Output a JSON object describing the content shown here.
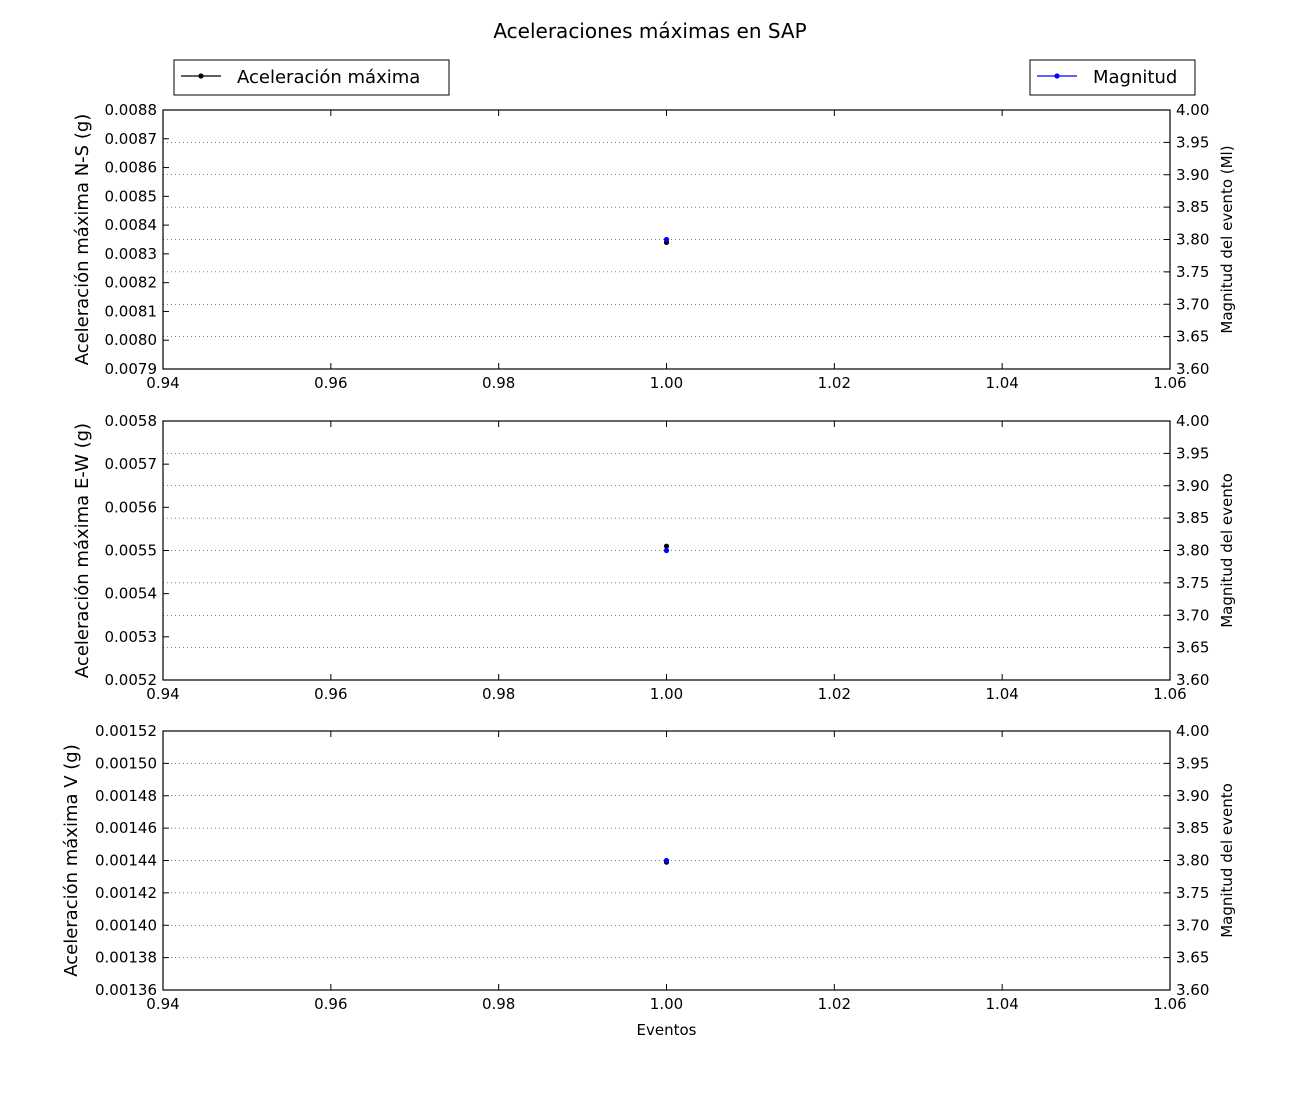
{
  "title": "Aceleraciones máximas en SAP",
  "legend": {
    "left": {
      "label": "Aceleración máxima",
      "color": "#000000",
      "placement": "upper-left"
    },
    "right": {
      "label": "Magnitud",
      "color": "#0000ff",
      "placement": "upper-right"
    }
  },
  "chart_data": [
    {
      "type": "scatter",
      "xlabel": "",
      "xlim": [
        0.94,
        1.06
      ],
      "xticks": [
        "0.94",
        "0.96",
        "0.98",
        "1.00",
        "1.02",
        "1.04",
        "1.06"
      ],
      "ylabel": "Aceleración máxima N-S (g)",
      "ylim": [
        0.0079,
        0.0088
      ],
      "yticks": [
        "0.0079",
        "0.0080",
        "0.0081",
        "0.0082",
        "0.0083",
        "0.0084",
        "0.0085",
        "0.0086",
        "0.0087",
        "0.0088"
      ],
      "y2label": "Magnitud del evento (Ml)",
      "y2lim": [
        3.6,
        4.0
      ],
      "y2ticks": [
        "3.60",
        "3.65",
        "3.70",
        "3.75",
        "3.80",
        "3.85",
        "3.90",
        "3.95",
        "4.00"
      ],
      "grid": "horizontal-dotted",
      "series": [
        {
          "name": "Aceleración máxima",
          "axis": "left",
          "color": "#000000",
          "x": [
            1.0
          ],
          "y": [
            0.00834
          ]
        },
        {
          "name": "Magnitud",
          "axis": "right",
          "color": "#0000ff",
          "x": [
            1.0
          ],
          "y": [
            3.8
          ]
        }
      ]
    },
    {
      "type": "scatter",
      "xlabel": "",
      "xlim": [
        0.94,
        1.06
      ],
      "xticks": [
        "0.94",
        "0.96",
        "0.98",
        "1.00",
        "1.02",
        "1.04",
        "1.06"
      ],
      "ylabel": "Aceleración máxima E-W (g)",
      "ylim": [
        0.0052,
        0.0058
      ],
      "yticks": [
        "0.0052",
        "0.0053",
        "0.0054",
        "0.0055",
        "0.0056",
        "0.0057",
        "0.0058"
      ],
      "y2label": "Magnitud del evento",
      "y2lim": [
        3.6,
        4.0
      ],
      "y2ticks": [
        "3.60",
        "3.65",
        "3.70",
        "3.75",
        "3.80",
        "3.85",
        "3.90",
        "3.95",
        "4.00"
      ],
      "grid": "horizontal-dotted",
      "series": [
        {
          "name": "Aceleración máxima",
          "axis": "left",
          "color": "#000000",
          "x": [
            1.0
          ],
          "y": [
            0.00551
          ]
        },
        {
          "name": "Magnitud",
          "axis": "right",
          "color": "#0000ff",
          "x": [
            1.0
          ],
          "y": [
            3.8
          ]
        }
      ]
    },
    {
      "type": "scatter",
      "xlabel": "Eventos",
      "xlim": [
        0.94,
        1.06
      ],
      "xticks": [
        "0.94",
        "0.96",
        "0.98",
        "1.00",
        "1.02",
        "1.04",
        "1.06"
      ],
      "ylabel": "Aceleración máxima V (g)",
      "ylim": [
        0.00136,
        0.00152
      ],
      "yticks": [
        "0.00136",
        "0.00138",
        "0.00140",
        "0.00142",
        "0.00144",
        "0.00146",
        "0.00148",
        "0.00150",
        "0.00152"
      ],
      "y2label": "Magnitud del evento",
      "y2lim": [
        3.6,
        4.0
      ],
      "y2ticks": [
        "3.60",
        "3.65",
        "3.70",
        "3.75",
        "3.80",
        "3.85",
        "3.90",
        "3.95",
        "4.00"
      ],
      "grid": "horizontal-dotted",
      "series": [
        {
          "name": "Aceleración máxima",
          "axis": "left",
          "color": "#000000",
          "x": [
            1.0
          ],
          "y": [
            0.001439
          ]
        },
        {
          "name": "Magnitud",
          "axis": "right",
          "color": "#0000ff",
          "x": [
            1.0
          ],
          "y": [
            3.8
          ]
        }
      ]
    }
  ]
}
